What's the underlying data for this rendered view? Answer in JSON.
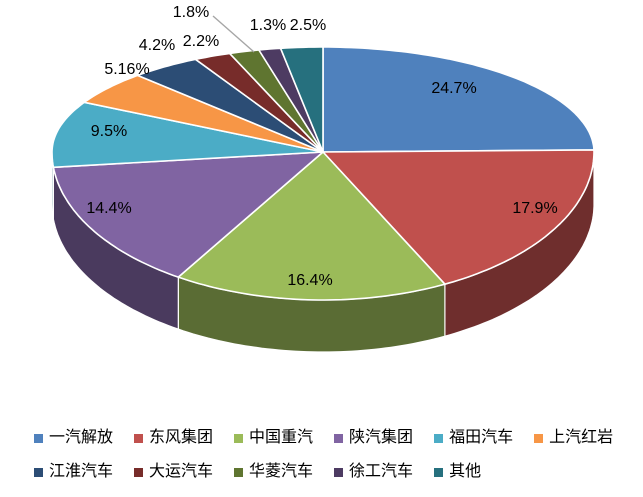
{
  "chart_data": {
    "type": "pie",
    "style": "3d-pie",
    "title": "",
    "background": "#FFFFFF",
    "legend_position": "bottom",
    "legend_rows": [
      [
        0,
        1,
        2,
        3,
        4,
        5
      ],
      [
        6,
        7,
        8,
        9,
        10
      ]
    ],
    "label_text_color": "#000000",
    "leader_line_color": "#A6A6A6",
    "series": [
      {
        "name": "一汽解放",
        "value": 24.7,
        "label": "24.7%",
        "color": "#4F81BD"
      },
      {
        "name": "东风集团",
        "value": 17.9,
        "label": "17.9%",
        "color": "#C0504D"
      },
      {
        "name": "中国重汽",
        "value": 16.4,
        "label": "16.4%",
        "color": "#9BBB59"
      },
      {
        "name": "陕汽集团",
        "value": 14.4,
        "label": "14.4%",
        "color": "#8064A2"
      },
      {
        "name": "福田汽车",
        "value": 9.5,
        "label": "9.5%",
        "color": "#4BACC6"
      },
      {
        "name": "上汽红岩",
        "value": 5.16,
        "label": "5.16%",
        "color": "#F79646"
      },
      {
        "name": "江淮汽车",
        "value": 4.2,
        "label": "4.2%",
        "color": "#2C4D75"
      },
      {
        "name": "大运汽车",
        "value": 2.2,
        "label": "2.2%",
        "color": "#772C2A"
      },
      {
        "name": "华菱汽车",
        "value": 1.8,
        "label": "1.8%",
        "color": "#5F7530"
      },
      {
        "name": "徐工汽车",
        "value": 1.3,
        "label": "1.3%",
        "color": "#4D3B62"
      },
      {
        "name": "其他",
        "value": 2.5,
        "label": "2.5%",
        "color": "#26707E"
      }
    ]
  }
}
